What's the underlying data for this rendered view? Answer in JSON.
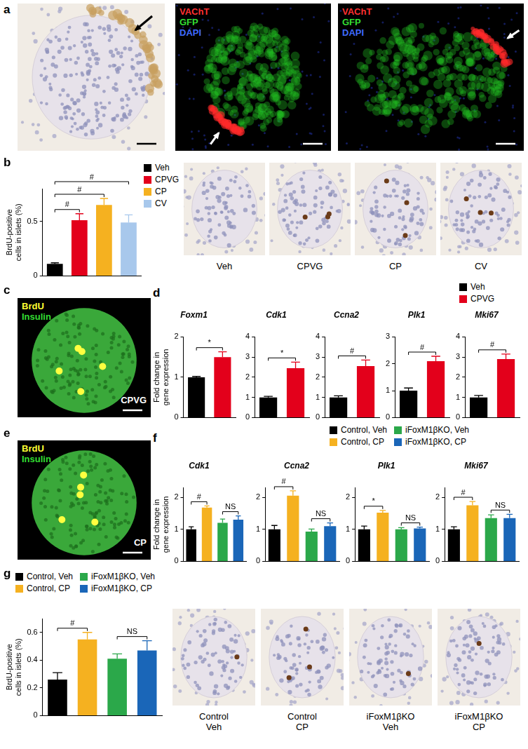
{
  "chart_data": [
    {
      "type": "bar",
      "categories": [
        null,
        null,
        null,
        null
      ],
      "y_label": "BrdU-positive cells in islets (%)",
      "ylim": [
        0,
        0.8
      ],
      "yticks": [
        0,
        0.5
      ],
      "tick_labels": "y",
      "grid": false,
      "legend": "right",
      "series": [
        {
          "name": "Veh",
          "color": "#000000",
          "values": [
            0.11,
            null,
            null,
            null
          ],
          "errors": [
            0.01,
            null,
            null,
            null
          ]
        },
        {
          "name": "CPVG",
          "color": "#e3001b",
          "values": [
            null,
            0.51,
            null,
            null
          ],
          "errors": [
            null,
            0.06,
            null,
            null
          ]
        },
        {
          "name": "CP",
          "color": "#f5b120",
          "values": [
            null,
            null,
            0.65,
            null
          ],
          "errors": [
            null,
            null,
            0.06,
            null
          ]
        },
        {
          "name": "CV",
          "color": "#a8c8ec",
          "values": [
            null,
            null,
            null,
            0.49
          ],
          "errors": [
            null,
            null,
            null,
            0.07
          ]
        }
      ],
      "annotations": [
        {
          "from": 0,
          "to": 1,
          "text": "#"
        },
        {
          "from": 0,
          "to": 2,
          "text": "#"
        },
        {
          "from": 0,
          "to": 3,
          "text": "#"
        }
      ]
    },
    {
      "type": "bar",
      "title": "Foxm1",
      "categories": [
        null,
        null
      ],
      "y_label": "Fold change in gene expression",
      "ylim": [
        0,
        2
      ],
      "yticks": [
        0,
        1,
        2
      ],
      "tick_labels": "y",
      "grid": false,
      "series": [
        {
          "name": "Veh",
          "color": "#000000",
          "values": [
            1,
            null
          ],
          "errors": [
            0.02,
            null
          ]
        },
        {
          "name": "CPVG",
          "color": "#e3001b",
          "values": [
            null,
            1.5
          ],
          "errors": [
            null,
            0.13
          ]
        }
      ],
      "annotations": [
        {
          "from": 0,
          "to": 1,
          "text": "*"
        }
      ]
    },
    {
      "type": "bar",
      "title": "Cdk1",
      "categories": [
        null,
        null
      ],
      "ylim": [
        0,
        4
      ],
      "yticks": [
        0,
        1,
        2,
        3,
        4
      ],
      "tick_labels": "y",
      "grid": false,
      "series": [
        {
          "name": "Veh",
          "color": "#000000",
          "values": [
            1,
            null
          ],
          "errors": [
            0.05,
            null
          ]
        },
        {
          "name": "CPVG",
          "color": "#e3001b",
          "values": [
            null,
            2.45
          ],
          "errors": [
            null,
            0.3
          ]
        }
      ],
      "annotations": [
        {
          "from": 0,
          "to": 1,
          "text": "*"
        }
      ]
    },
    {
      "type": "bar",
      "title": "Ccna2",
      "categories": [
        null,
        null
      ],
      "ylim": [
        0,
        4
      ],
      "yticks": [
        0,
        1,
        2,
        3,
        4
      ],
      "tick_labels": "y",
      "grid": false,
      "series": [
        {
          "name": "Veh",
          "color": "#000000",
          "values": [
            1,
            null
          ],
          "errors": [
            0.08,
            null
          ]
        },
        {
          "name": "CPVG",
          "color": "#e3001b",
          "values": [
            null,
            2.55
          ],
          "errors": [
            null,
            0.3
          ]
        }
      ],
      "annotations": [
        {
          "from": 0,
          "to": 1,
          "text": "#"
        }
      ]
    },
    {
      "type": "bar",
      "title": "Plk1",
      "categories": [
        null,
        null
      ],
      "ylim": [
        0,
        3
      ],
      "yticks": [
        0,
        1,
        2,
        3
      ],
      "tick_labels": "y",
      "grid": false,
      "series": [
        {
          "name": "Veh",
          "color": "#000000",
          "values": [
            1,
            null
          ],
          "errors": [
            0.1,
            null
          ]
        },
        {
          "name": "CPVG",
          "color": "#e3001b",
          "values": [
            null,
            2.1
          ],
          "errors": [
            null,
            0.18
          ]
        }
      ],
      "annotations": [
        {
          "from": 0,
          "to": 1,
          "text": "#"
        }
      ]
    },
    {
      "type": "bar",
      "title": "Mki67",
      "categories": [
        null,
        null
      ],
      "ylim": [
        0,
        4
      ],
      "yticks": [
        0,
        1,
        2,
        3,
        4
      ],
      "tick_labels": "y",
      "grid": false,
      "legend": "top",
      "series": [
        {
          "name": "Veh",
          "color": "#000000",
          "values": [
            1,
            null
          ],
          "errors": [
            0.1,
            null
          ]
        },
        {
          "name": "CPVG",
          "color": "#e3001b",
          "values": [
            null,
            2.9
          ],
          "errors": [
            null,
            0.25
          ]
        }
      ],
      "annotations": [
        {
          "from": 0,
          "to": 1,
          "text": "#"
        }
      ]
    },
    {
      "type": "bar",
      "title": "Cdk1",
      "categories": [
        null,
        null,
        null,
        null
      ],
      "y_label": "Fold change in gene expression",
      "ylim": [
        0,
        2.3
      ],
      "yticks": [
        0,
        1,
        2
      ],
      "tick_labels": "y",
      "grid": false,
      "series": [
        {
          "name": "Control, Veh",
          "color": "#000000",
          "values": [
            1,
            null,
            null,
            null
          ],
          "errors": [
            0.08,
            null,
            null,
            null
          ]
        },
        {
          "name": "Control, CP",
          "color": "#f5b120",
          "values": [
            null,
            1.68,
            null,
            null
          ],
          "errors": [
            null,
            0.05,
            null,
            null
          ]
        },
        {
          "name": "iFoxM1βKO, Veh",
          "color": "#2ba84a",
          "values": [
            null,
            null,
            1.2,
            null
          ],
          "errors": [
            null,
            null,
            0.12,
            null
          ]
        },
        {
          "name": "iFoxM1βKO, CP",
          "color": "#1a66b8",
          "values": [
            null,
            null,
            null,
            1.3
          ],
          "errors": [
            null,
            null,
            null,
            0.12
          ]
        }
      ],
      "annotations": [
        {
          "from": 0,
          "to": 1,
          "text": "#"
        },
        {
          "from": 2,
          "to": 3,
          "text": "NS"
        }
      ]
    },
    {
      "type": "bar",
      "title": "Ccna2",
      "categories": [
        null,
        null,
        null,
        null
      ],
      "ylim": [
        0,
        2.3
      ],
      "yticks": [
        0,
        1,
        2
      ],
      "tick_labels": "y",
      "grid": false,
      "series": [
        {
          "name": "Control, Veh",
          "color": "#000000",
          "values": [
            1,
            null,
            null,
            null
          ],
          "errors": [
            0.12,
            null,
            null,
            null
          ]
        },
        {
          "name": "Control, CP",
          "color": "#f5b120",
          "values": [
            null,
            2.05,
            null,
            null
          ],
          "errors": [
            null,
            0.15,
            null,
            null
          ]
        },
        {
          "name": "iFoxM1βKO, Veh",
          "color": "#2ba84a",
          "values": [
            null,
            null,
            0.93,
            null
          ],
          "errors": [
            null,
            null,
            0.08,
            null
          ]
        },
        {
          "name": "iFoxM1βKO, CP",
          "color": "#1a66b8",
          "values": [
            null,
            null,
            null,
            1.1
          ],
          "errors": [
            null,
            null,
            null,
            0.1
          ]
        }
      ],
      "annotations": [
        {
          "from": 0,
          "to": 1,
          "text": "#"
        },
        {
          "from": 2,
          "to": 3,
          "text": "NS"
        }
      ]
    },
    {
      "type": "bar",
      "title": "Plk1",
      "categories": [
        null,
        null,
        null,
        null
      ],
      "ylim": [
        0,
        2.3
      ],
      "yticks": [
        0,
        1,
        2
      ],
      "tick_labels": "y",
      "grid": false,
      "series": [
        {
          "name": "Control, Veh",
          "color": "#000000",
          "values": [
            1,
            null,
            null,
            null
          ],
          "errors": [
            0.1,
            null,
            null,
            null
          ]
        },
        {
          "name": "Control, CP",
          "color": "#f5b120",
          "values": [
            null,
            1.52,
            null,
            null
          ],
          "errors": [
            null,
            0.07,
            null,
            null
          ]
        },
        {
          "name": "iFoxM1βKO, Veh",
          "color": "#2ba84a",
          "values": [
            null,
            null,
            1.0,
            null
          ],
          "errors": [
            null,
            null,
            0.05,
            null
          ]
        },
        {
          "name": "iFoxM1βKO, CP",
          "color": "#1a66b8",
          "values": [
            null,
            null,
            null,
            1.03
          ],
          "errors": [
            null,
            null,
            null,
            0.04
          ]
        }
      ],
      "annotations": [
        {
          "from": 0,
          "to": 1,
          "text": "*"
        },
        {
          "from": 2,
          "to": 3,
          "text": "NS"
        }
      ]
    },
    {
      "type": "bar",
      "title": "Mki67",
      "categories": [
        null,
        null,
        null,
        null
      ],
      "ylim": [
        0,
        2.3
      ],
      "yticks": [
        0,
        1,
        2
      ],
      "tick_labels": "y",
      "grid": false,
      "legend": "top",
      "series": [
        {
          "name": "Control, Veh",
          "color": "#000000",
          "values": [
            1,
            null,
            null,
            null
          ],
          "errors": [
            0.08,
            null,
            null,
            null
          ]
        },
        {
          "name": "Control, CP",
          "color": "#f5b120",
          "values": [
            null,
            1.75,
            null,
            null
          ],
          "errors": [
            null,
            0.12,
            null,
            null
          ]
        },
        {
          "name": "iFoxM1βKO, Veh",
          "color": "#2ba84a",
          "values": [
            null,
            null,
            1.35,
            null
          ],
          "errors": [
            null,
            null,
            0.1,
            null
          ]
        },
        {
          "name": "iFoxM1βKO, CP",
          "color": "#1a66b8",
          "values": [
            null,
            null,
            null,
            1.35
          ],
          "errors": [
            null,
            null,
            null,
            0.12
          ]
        }
      ],
      "annotations": [
        {
          "from": 0,
          "to": 1,
          "text": "#"
        },
        {
          "from": 2,
          "to": 3,
          "text": "NS"
        }
      ]
    },
    {
      "type": "bar",
      "categories": [
        null,
        null,
        null,
        null
      ],
      "y_label": "BrdU-positive cells in islets (%)",
      "ylim": [
        0,
        0.7
      ],
      "yticks": [
        0,
        0.2,
        0.4,
        0.6
      ],
      "tick_labels": "y",
      "grid": false,
      "legend": "top",
      "series": [
        {
          "name": "Control, Veh",
          "color": "#000000",
          "values": [
            0.26,
            null,
            null,
            null
          ],
          "errors": [
            0.05,
            null,
            null,
            null
          ]
        },
        {
          "name": "Control, CP",
          "color": "#f5b120",
          "values": [
            null,
            0.55,
            null,
            null
          ],
          "errors": [
            null,
            0.05,
            null,
            null
          ]
        },
        {
          "name": "iFoxM1βKO, Veh",
          "color": "#2ba84a",
          "values": [
            null,
            null,
            0.41,
            null
          ],
          "errors": [
            null,
            null,
            0.035,
            null
          ]
        },
        {
          "name": "iFoxM1βKO, CP",
          "color": "#1a66b8",
          "values": [
            null,
            null,
            null,
            0.47
          ],
          "errors": [
            null,
            null,
            null,
            0.07
          ]
        }
      ],
      "annotations": [
        {
          "from": 0,
          "to": 1,
          "text": "#"
        },
        {
          "from": 2,
          "to": 3,
          "text": "NS"
        }
      ]
    }
  ],
  "panel_letters": [
    "a",
    "b",
    "c",
    "d",
    "e",
    "f",
    "g"
  ],
  "image_panels": {
    "a": [
      {
        "channels": []
      },
      {
        "channels": [
          {
            "text": "VAChT",
            "color": "#ff3030"
          },
          {
            "text": "GFP",
            "color": "#33dd33"
          },
          {
            "text": "DAPI",
            "color": "#3f6bff"
          }
        ]
      },
      {
        "channels": [
          {
            "text": "VAChT",
            "color": "#ff3030"
          },
          {
            "text": "GFP",
            "color": "#33dd33"
          },
          {
            "text": "DAPI",
            "color": "#3f6bff"
          }
        ]
      }
    ],
    "b": [
      {
        "caption": "Veh"
      },
      {
        "caption": "CPVG"
      },
      {
        "caption": "CP"
      },
      {
        "caption": "CV"
      }
    ],
    "c": [
      {
        "channels": [
          {
            "text": "BrdU",
            "color": "#ffff33"
          },
          {
            "text": "Insulin",
            "color": "#33dd33"
          }
        ],
        "tag": "CPVG"
      }
    ],
    "e": [
      {
        "channels": [
          {
            "text": "BrdU",
            "color": "#ffff33"
          },
          {
            "text": "Insulin",
            "color": "#33dd33"
          }
        ],
        "tag": "CP"
      }
    ],
    "g": [
      {
        "caption": [
          "Control",
          "Veh"
        ]
      },
      {
        "caption": [
          "Control",
          "CP"
        ]
      },
      {
        "caption": [
          "iFoxM1βKO",
          "Veh"
        ]
      },
      {
        "caption": [
          "iFoxM1βKO",
          "CP"
        ]
      }
    ]
  }
}
